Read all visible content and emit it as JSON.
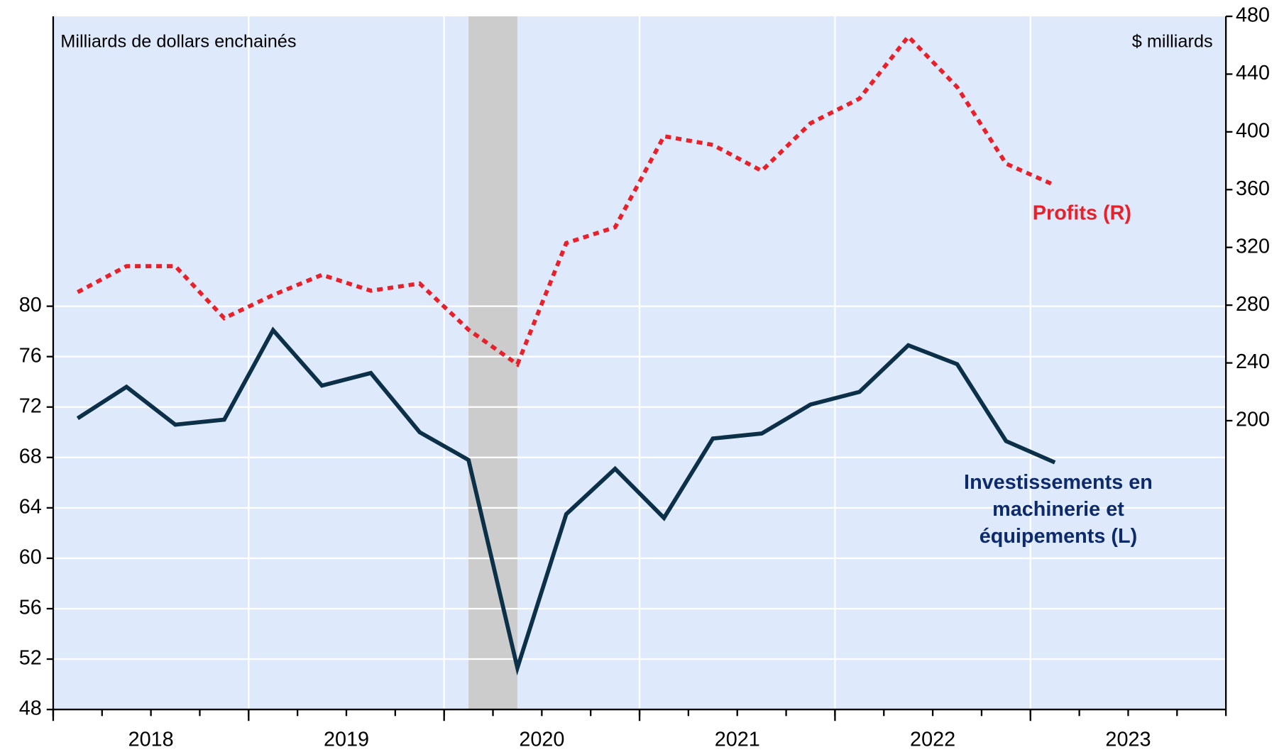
{
  "chart_data": {
    "type": "line",
    "ylabel": "Milliards de dollars enchainés",
    "y2label": "$ milliards",
    "x": [
      2018.125,
      2018.375,
      2018.625,
      2018.875,
      2019.125,
      2019.375,
      2019.625,
      2019.875,
      2020.125,
      2020.375,
      2020.625,
      2020.875,
      2021.125,
      2021.375,
      2021.625,
      2021.875,
      2022.125,
      2022.375,
      2022.625,
      2022.875,
      2023.125
    ],
    "series": [
      {
        "name": "Investissements en machinerie et équipements (L)",
        "color": "#0d3049",
        "label_color": "#0d2a6b",
        "style": "solid",
        "values": [
          71.1,
          73.6,
          70.6,
          71.0,
          78.1,
          73.7,
          74.7,
          70.0,
          67.8,
          51.3,
          63.5,
          67.1,
          63.2,
          69.5,
          69.9,
          72.2,
          73.2,
          76.9,
          75.4,
          69.3,
          67.6
        ]
      },
      {
        "name": "Profits (R)",
        "color": "#e8202a",
        "label_color": "#e8202a",
        "style": "dotted",
        "axis": "y2",
        "values": [
          289,
          307,
          307,
          271,
          287,
          301,
          290,
          295,
          263,
          239,
          323,
          334,
          397,
          391,
          373,
          406,
          423,
          466,
          431,
          378,
          363
        ]
      }
    ],
    "xlim": [
      2018,
      2024
    ],
    "xticks": [
      2018,
      2019,
      2020,
      2021,
      2022,
      2023
    ],
    "ylim": [
      48,
      103
    ],
    "yticks": [
      48,
      52,
      56,
      60,
      64,
      68,
      72,
      76,
      80
    ],
    "y2lim": [
      0,
      480
    ],
    "y2ticks": [
      200,
      240,
      280,
      320,
      360,
      400,
      440,
      480
    ],
    "recession": [
      2020.125,
      2020.375
    ],
    "grid": true,
    "background": "#deeafb"
  }
}
